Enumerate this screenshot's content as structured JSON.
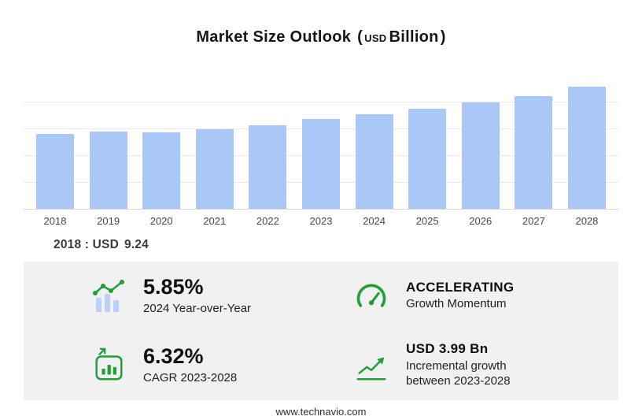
{
  "title": {
    "main": "Market Size Outlook",
    "paren_open": "(",
    "currency": "USD",
    "unit": "Billion",
    "paren_close": ")"
  },
  "chart_data": {
    "type": "bar",
    "title": "Market Size Outlook (USD Billion)",
    "categories": [
      "2018",
      "2019",
      "2020",
      "2021",
      "2022",
      "2023",
      "2024",
      "2025",
      "2026",
      "2027",
      "2028"
    ],
    "values": [
      9.24,
      9.62,
      9.46,
      9.85,
      10.35,
      11.12,
      11.77,
      12.45,
      13.15,
      13.95,
      15.11
    ],
    "xlabel": "",
    "ylabel": "USD Billion",
    "ylim": [
      0,
      16.6
    ],
    "grid": true,
    "legend": false,
    "bar_color": "#a9c8f8"
  },
  "annotation": {
    "year_label": "2018 : USD",
    "value": "9.24"
  },
  "stats": [
    {
      "id": "yoy",
      "icon": "bar-line-chart-icon",
      "value": "5.85%",
      "label": "2024 Year-over-Year"
    },
    {
      "id": "momentum",
      "icon": "speedometer-icon",
      "value": "ACCELERATING",
      "label": "Growth Momentum"
    },
    {
      "id": "cagr",
      "icon": "bar-chart-box-icon",
      "value": "6.32%",
      "label": "CAGR 2023-2028"
    },
    {
      "id": "incremental",
      "icon": "line-growth-icon",
      "value": "USD 3.99 Bn",
      "label_line1": "Incremental growth",
      "label_line2": "between 2023-2028"
    }
  ],
  "footer": {
    "url": "www.technavio.com"
  },
  "colors": {
    "accent_green": "#21a038",
    "bar_blue": "#a9c8f8",
    "panel_gray": "#f1f1f1"
  }
}
